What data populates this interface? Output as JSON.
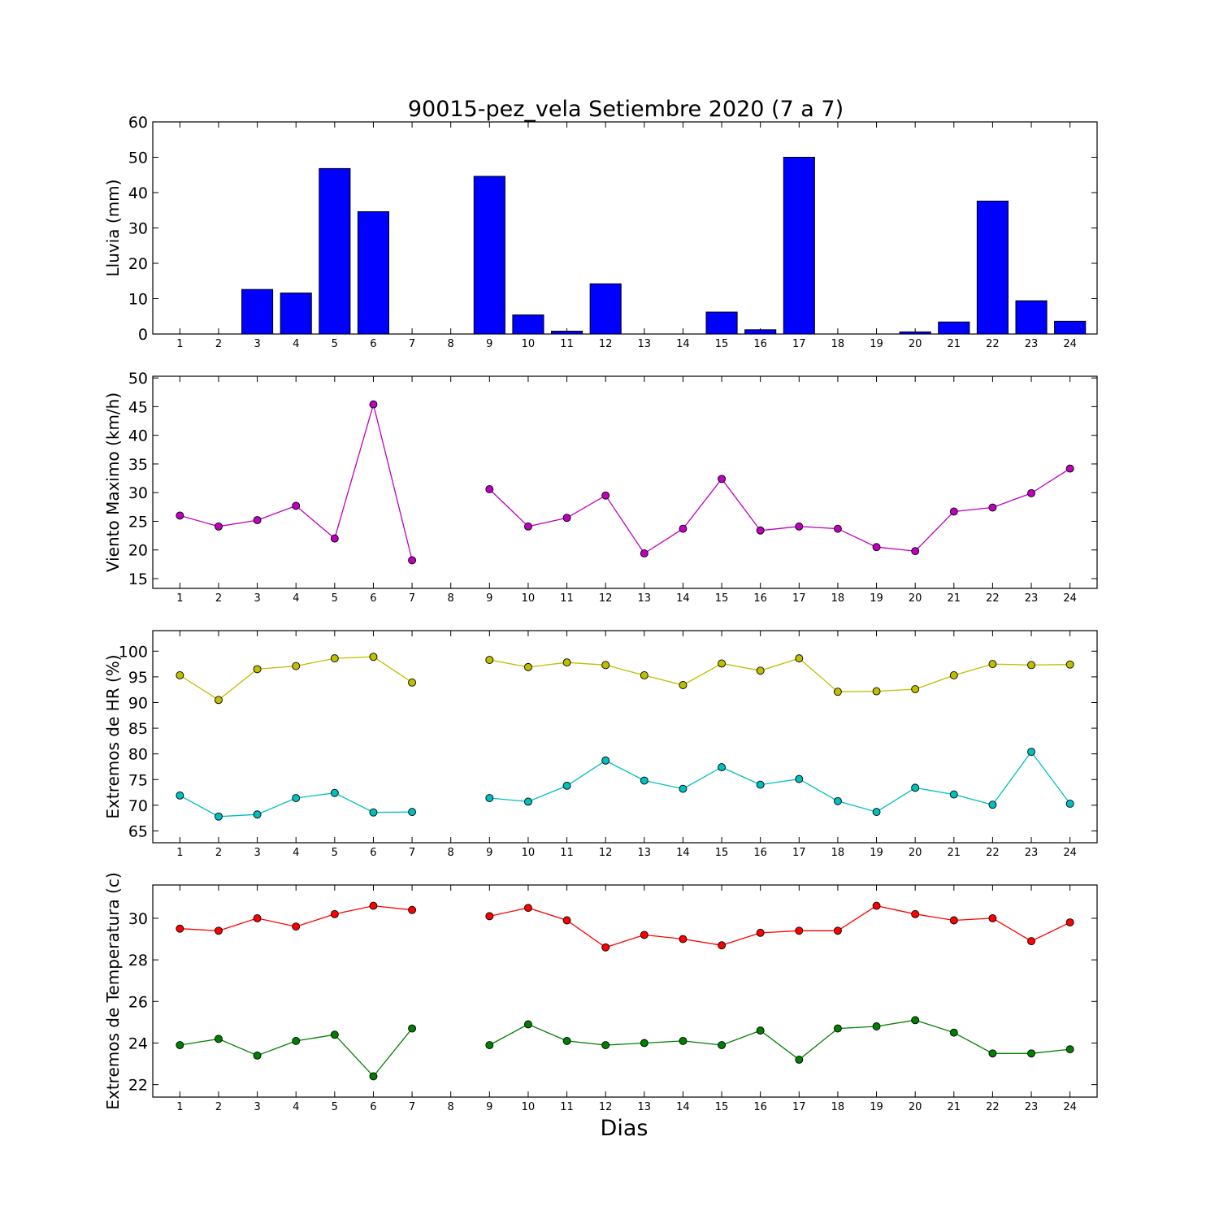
{
  "title": "90015-pez_vela Setiembre 2020  (7 a 7)",
  "xlabel": "Dias",
  "chart_data": [
    {
      "type": "bar",
      "ylabel": "Lluvia (mm)",
      "categories": [
        "1",
        "2",
        "3",
        "4",
        "5",
        "6",
        "7",
        "8",
        "9",
        "10",
        "11",
        "12",
        "13",
        "14",
        "15",
        "16",
        "17",
        "18",
        "19",
        "20",
        "21",
        "22",
        "23",
        "24"
      ],
      "ylim": [
        0,
        60
      ],
      "yticks": [
        0,
        10,
        20,
        30,
        40,
        50,
        60
      ],
      "series": [
        {
          "color": "#0000ff",
          "values": [
            0,
            0,
            12.6,
            11.6,
            46.8,
            34.6,
            0,
            0,
            44.6,
            5.4,
            0.8,
            14.2,
            0,
            0,
            6.2,
            1.2,
            50.0,
            0,
            0,
            0.6,
            3.4,
            37.6,
            9.4,
            3.6
          ]
        }
      ]
    },
    {
      "type": "line",
      "ylabel": "Viento Maximo (km/h)",
      "categories": [
        "1",
        "2",
        "3",
        "4",
        "5",
        "6",
        "7",
        "8",
        "9",
        "10",
        "11",
        "12",
        "13",
        "14",
        "15",
        "16",
        "17",
        "18",
        "19",
        "20",
        "21",
        "22",
        "23",
        "24"
      ],
      "ylim": [
        13.3,
        50.3
      ],
      "yticks": [
        15,
        20,
        25,
        30,
        35,
        40,
        45,
        50
      ],
      "series": [
        {
          "color": "#bf00bf",
          "values": [
            26.0,
            24.1,
            25.2,
            27.7,
            22.0,
            45.4,
            18.2,
            null,
            30.6,
            24.1,
            25.6,
            29.5,
            19.4,
            23.7,
            32.4,
            23.4,
            24.1,
            23.7,
            20.5,
            19.8,
            26.7,
            27.4,
            29.9,
            34.2
          ]
        }
      ]
    },
    {
      "type": "line",
      "ylabel": "Extremos de HR (%)",
      "categories": [
        "1",
        "2",
        "3",
        "4",
        "5",
        "6",
        "7",
        "8",
        "9",
        "10",
        "11",
        "12",
        "13",
        "14",
        "15",
        "16",
        "17",
        "18",
        "19",
        "20",
        "21",
        "22",
        "23",
        "24"
      ],
      "ylim": [
        62.7,
        104.0
      ],
      "yticks": [
        65,
        70,
        75,
        80,
        85,
        90,
        95,
        100
      ],
      "series": [
        {
          "color": "#bfbf00",
          "values": [
            95.3,
            90.5,
            96.5,
            97.1,
            98.6,
            98.9,
            93.9,
            null,
            98.3,
            96.9,
            97.8,
            97.3,
            95.3,
            93.4,
            97.6,
            96.2,
            98.6,
            92.1,
            92.2,
            92.6,
            95.3,
            97.5,
            97.3,
            97.4
          ]
        },
        {
          "color": "#00bfbf",
          "values": [
            71.9,
            67.8,
            68.2,
            71.4,
            72.4,
            68.6,
            68.7,
            null,
            71.4,
            70.7,
            73.8,
            78.7,
            74.8,
            73.2,
            77.4,
            74.0,
            75.1,
            70.8,
            68.7,
            73.4,
            72.1,
            70.1,
            80.4,
            70.3
          ]
        }
      ]
    },
    {
      "type": "line",
      "ylabel": "Extremos de Temperatura (c)",
      "categories": [
        "1",
        "2",
        "3",
        "4",
        "5",
        "6",
        "7",
        "8",
        "9",
        "10",
        "11",
        "12",
        "13",
        "14",
        "15",
        "16",
        "17",
        "18",
        "19",
        "20",
        "21",
        "22",
        "23",
        "24"
      ],
      "ylim": [
        21.4,
        31.6
      ],
      "yticks": [
        22,
        24,
        26,
        28,
        30
      ],
      "series": [
        {
          "color": "#ff0000",
          "values": [
            29.5,
            29.4,
            30.0,
            29.6,
            30.2,
            30.6,
            30.4,
            null,
            30.1,
            30.5,
            29.9,
            28.6,
            29.2,
            29.0,
            28.7,
            29.3,
            29.4,
            29.4,
            30.6,
            30.2,
            29.9,
            30.0,
            28.9,
            29.8
          ]
        },
        {
          "color": "#007f00",
          "values": [
            23.9,
            24.2,
            23.4,
            24.1,
            24.4,
            22.4,
            24.7,
            null,
            23.9,
            24.9,
            24.1,
            23.9,
            24.0,
            24.1,
            23.9,
            24.6,
            23.2,
            24.7,
            24.8,
            25.1,
            24.5,
            23.5,
            23.5,
            23.7
          ]
        }
      ]
    }
  ]
}
